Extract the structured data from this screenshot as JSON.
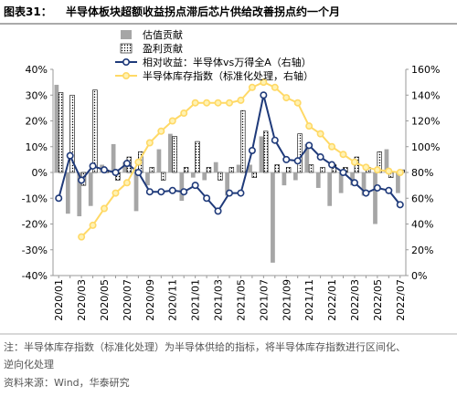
{
  "chart_data": {
    "type": "bar_line",
    "figure_label": "图表31：",
    "title": "半导体板块超额收益拐点滞后芯片供给改善拐点约一个月",
    "categories": [
      "2020/01",
      null,
      "2020/03",
      null,
      "2020/05",
      null,
      "2020/07",
      null,
      "2020/09",
      null,
      "2020/11",
      null,
      "2021/01",
      null,
      "2021/03",
      null,
      "2021/05",
      null,
      "2021/07",
      null,
      "2021/09",
      null,
      "2021/11",
      null,
      "2022/01",
      null,
      "2022/03",
      null,
      "2022/05",
      null,
      "2022/07"
    ],
    "series": [
      {
        "name": "估值贡献",
        "type": "bar",
        "color": "#a6a6a6",
        "values": [
          34,
          -16,
          -17,
          -13,
          3,
          11,
          4,
          -15,
          -5,
          9,
          15,
          -11,
          -2,
          -3,
          4,
          -9,
          3,
          3,
          14,
          -35,
          -5,
          -3,
          11,
          -6,
          -13,
          -8,
          -5,
          -9,
          -20,
          9,
          -8
        ]
      },
      {
        "name": "盈利贡献",
        "type": "bar",
        "pattern": "dots",
        "color": "#000000",
        "values": [
          31,
          30,
          -5,
          32,
          1,
          -3,
          6,
          8,
          2,
          -3,
          14,
          2,
          12,
          2,
          -3,
          2,
          24,
          -2,
          16,
          3,
          2,
          15,
          3,
          2,
          3,
          2,
          6,
          2,
          8,
          -2,
          1
        ]
      },
      {
        "name": "相对收益：半导体vs万得全A（右轴）",
        "type": "line",
        "axis": "y2",
        "color": "#1f3a7a",
        "marker_fill": "#ffffff",
        "values": [
          60,
          93,
          74,
          85,
          82,
          80,
          87,
          80,
          65,
          65,
          66,
          65,
          70,
          60,
          50,
          64,
          64,
          97,
          140,
          105,
          90,
          89,
          101,
          92,
          86,
          80,
          72,
          64,
          68,
          66,
          55
        ]
      },
      {
        "name": "半导体库存指数（标准化处理，右轴）",
        "type": "line",
        "axis": "y2",
        "color": "#ffd966",
        "marker_fill": "#fff2b3",
        "values": [
          null,
          null,
          30,
          39,
          52,
          64,
          72,
          88,
          103,
          112,
          120,
          126,
          134,
          134,
          134,
          134,
          136,
          146,
          150,
          146,
          138,
          134,
          116,
          110,
          100,
          94,
          88,
          84,
          82,
          81,
          80
        ]
      }
    ],
    "ylim": [
      -40,
      40
    ],
    "yticks": [
      {
        "value": -40,
        "label": "-40%"
      },
      {
        "value": -30,
        "label": "-30%"
      },
      {
        "value": -20,
        "label": "-20%"
      },
      {
        "value": -10,
        "label": "-10%"
      },
      {
        "value": 0,
        "label": "0%"
      },
      {
        "value": 10,
        "label": "10%"
      },
      {
        "value": 20,
        "label": "20%"
      },
      {
        "value": 30,
        "label": "30%"
      },
      {
        "value": 40,
        "label": "40%"
      }
    ],
    "y2lim": [
      0,
      160
    ],
    "y2ticks": [
      {
        "value": 0,
        "label": "0%"
      },
      {
        "value": 20,
        "label": "20%"
      },
      {
        "value": 40,
        "label": "40%"
      },
      {
        "value": 60,
        "label": "60%"
      },
      {
        "value": 80,
        "label": "80%"
      },
      {
        "value": 100,
        "label": "100%"
      },
      {
        "value": 120,
        "label": "120%"
      },
      {
        "value": 140,
        "label": "140%"
      },
      {
        "value": 160,
        "label": "160%"
      }
    ],
    "grid": false,
    "note": "注：半导体库存指数（标准化处理）为半导体供给的指标，将半导体库存指数进行区间化、逆向化处理",
    "source": "资料来源：Wind，华泰研究"
  }
}
